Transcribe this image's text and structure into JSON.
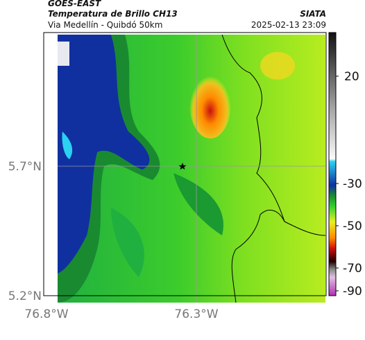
{
  "header": {
    "satellite": "GOES-EAST",
    "product": "Temperatura de Brillo CH13",
    "route": "Via Medellín - Quibdó 50km",
    "agency": "SIATA",
    "timestamp": "2025-02-13 23:09"
  },
  "map": {
    "lat_labels": [
      "5.7°N",
      "5.2°N"
    ],
    "lon_labels": [
      "76.8°W",
      "76.3°W"
    ]
  },
  "colorbar": {
    "labels": [
      "20",
      "-30",
      "-50",
      "-70",
      "-90"
    ]
  }
}
